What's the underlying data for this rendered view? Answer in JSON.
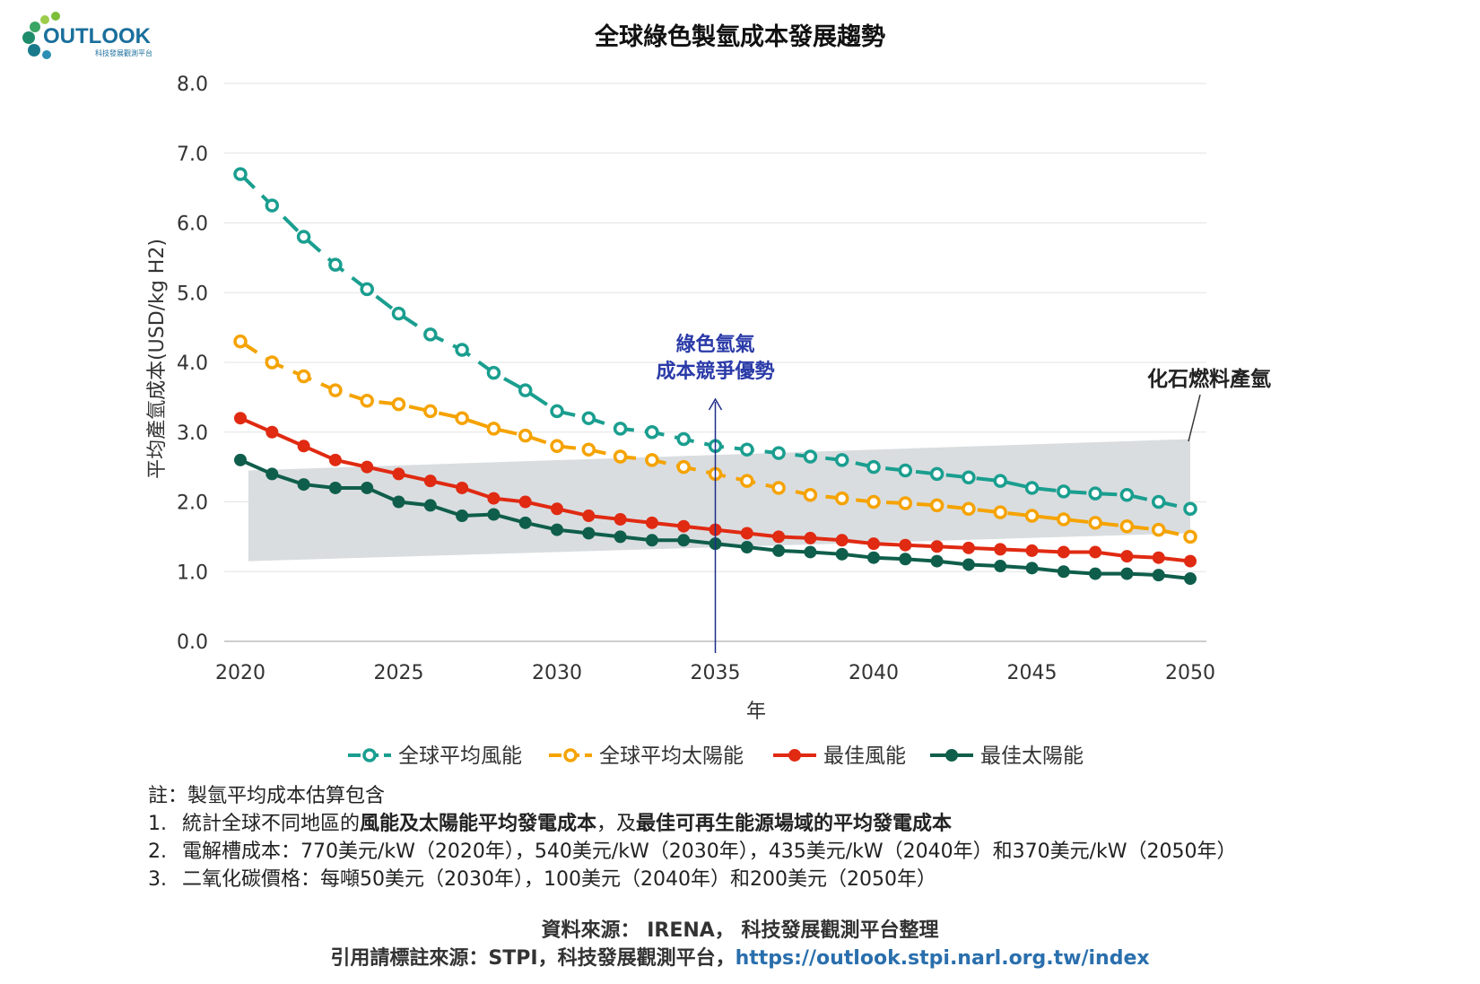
{
  "logo": {
    "text": "OUTLOOK",
    "subtext": "科技發展觀測平台"
  },
  "chart_data": {
    "type": "line",
    "title": "全球綠色製氫成本發展趨勢",
    "xlabel": "年",
    "ylabel": "平均產氫成本(USD/kg H2)",
    "xlim": [
      2020,
      2050
    ],
    "ylim": [
      0,
      8
    ],
    "yticks": [
      "0.0",
      "1.0",
      "2.0",
      "3.0",
      "4.0",
      "5.0",
      "6.0",
      "7.0",
      "8.0"
    ],
    "xticks": [
      "2020",
      "2025",
      "2030",
      "2035",
      "2040",
      "2045",
      "2050"
    ],
    "grid": true,
    "legend_position": "bottom",
    "x": [
      2020,
      2021,
      2022,
      2023,
      2024,
      2025,
      2026,
      2027,
      2028,
      2029,
      2030,
      2031,
      2032,
      2033,
      2034,
      2035,
      2036,
      2037,
      2038,
      2039,
      2040,
      2041,
      2042,
      2043,
      2044,
      2045,
      2046,
      2047,
      2048,
      2049,
      2050
    ],
    "series": [
      {
        "name": "全球平均風能",
        "color": "#1a9e8f",
        "style": "dashed-hollow",
        "values": [
          6.7,
          6.25,
          5.8,
          5.4,
          5.05,
          4.7,
          4.4,
          4.18,
          3.85,
          3.6,
          3.3,
          3.2,
          3.05,
          3.0,
          2.9,
          2.8,
          2.75,
          2.7,
          2.65,
          2.6,
          2.5,
          2.45,
          2.4,
          2.35,
          2.3,
          2.2,
          2.15,
          2.12,
          2.1,
          2.0,
          1.9
        ]
      },
      {
        "name": "全球平均太陽能",
        "color": "#f5a300",
        "style": "dashed-hollow",
        "values": [
          4.3,
          4.0,
          3.8,
          3.6,
          3.45,
          3.4,
          3.3,
          3.2,
          3.05,
          2.95,
          2.8,
          2.75,
          2.65,
          2.6,
          2.5,
          2.4,
          2.3,
          2.2,
          2.1,
          2.05,
          2.0,
          1.98,
          1.95,
          1.9,
          1.85,
          1.8,
          1.75,
          1.7,
          1.65,
          1.6,
          1.5
        ]
      },
      {
        "name": "最佳風能",
        "color": "#e02a12",
        "style": "solid-filled",
        "values": [
          3.2,
          3.0,
          2.8,
          2.6,
          2.5,
          2.4,
          2.3,
          2.2,
          2.05,
          2.0,
          1.9,
          1.8,
          1.75,
          1.7,
          1.65,
          1.6,
          1.55,
          1.5,
          1.48,
          1.45,
          1.4,
          1.38,
          1.36,
          1.34,
          1.32,
          1.3,
          1.28,
          1.28,
          1.22,
          1.2,
          1.15
        ]
      },
      {
        "name": "最佳太陽能",
        "color": "#0f5e4b",
        "style": "solid-filled",
        "values": [
          2.6,
          2.4,
          2.25,
          2.2,
          2.2,
          2.0,
          1.95,
          1.8,
          1.82,
          1.7,
          1.6,
          1.55,
          1.5,
          1.45,
          1.45,
          1.4,
          1.35,
          1.3,
          1.28,
          1.25,
          1.2,
          1.18,
          1.15,
          1.1,
          1.08,
          1.05,
          1.0,
          0.97,
          0.97,
          0.95,
          0.9
        ]
      }
    ],
    "fossil_band": {
      "label": "化石燃料產氫",
      "color": "#d9dde0",
      "x_start": 2020.25,
      "x_end": 2050,
      "upper": [
        2.45,
        2.9
      ],
      "lower": [
        1.15,
        1.55
      ]
    },
    "marker_line": {
      "x": 2035,
      "color": "#1f2d8a",
      "label_lines": [
        "綠色氫氣",
        "成本競爭優勢"
      ]
    }
  },
  "notes": {
    "title": "註：製氫平均成本估算包含",
    "items": [
      {
        "num": "1.",
        "pre": "統計全球不同地區的",
        "bold1": "風能及太陽能平均發電成本",
        "mid": "，及",
        "bold2": "最佳可再生能源場域的平均發電成本"
      },
      {
        "num": "2.",
        "text": "電解槽成本：770美元/kW（2020年），540美元/kW（2030年），435美元/kW（2040年）和370美元/kW（2050年）"
      },
      {
        "num": "3.",
        "text": "二氧化碳價格：每噸50美元（2030年），100美元（2040年）和200美元（2050年）"
      }
    ]
  },
  "source": {
    "line1": "資料來源： IRENA， 科技發展觀測平台整理",
    "line2_prefix": "引用請標註來源：STPI，科技發展觀測平台，",
    "line2_url": "https://outlook.stpi.narl.org.tw/index"
  }
}
